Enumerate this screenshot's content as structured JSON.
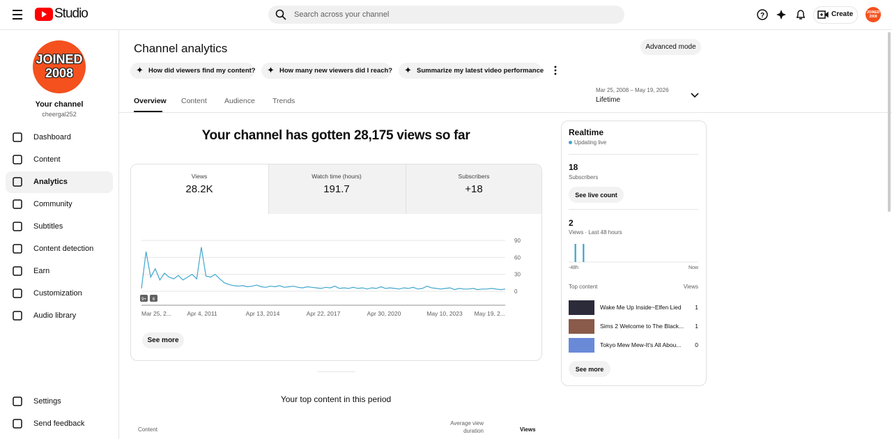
{
  "header": {
    "logo": "Studio",
    "search_placeholder": "Search across your channel",
    "create": "Create",
    "avatar_text": "JOINED 2008"
  },
  "sidebar": {
    "avatar_lines": [
      "JOINED",
      "2008"
    ],
    "channel_title": "Your channel",
    "channel_handle": "cheergal252",
    "nav": [
      "Dashboard",
      "Content",
      "Analytics",
      "Community",
      "Subtitles",
      "Content detection",
      "Earn",
      "Customization",
      "Audio library"
    ],
    "footer_nav": [
      "Settings",
      "Send feedback"
    ]
  },
  "main": {
    "title": "Channel analytics",
    "advanced_mode": "Advanced mode",
    "prompts": [
      "How did viewers find my content?",
      "How many new viewers did I reach?",
      "Summarize my latest video performance"
    ],
    "tabs": [
      "Overview",
      "Content",
      "Audience",
      "Trends"
    ],
    "date_range": "Mar 25, 2008 – May 19, 2026",
    "period": "Lifetime",
    "headline": "Your channel has gotten 28,175 views so far",
    "metrics": [
      {
        "label": "Views",
        "value": "28.2K"
      },
      {
        "label": "Watch time (hours)",
        "value": "191.7"
      },
      {
        "label": "Subscribers",
        "value": "+18"
      }
    ],
    "chart": {
      "type": "line",
      "color": "#41a6cc",
      "ylim": [
        0,
        90
      ],
      "yticks": [
        0,
        30,
        60,
        90
      ],
      "x_labels": [
        "Mar 25, 2...",
        "Apr 4, 2011",
        "Apr 13, 2014",
        "Apr 22, 2017",
        "Apr 30, 2020",
        "May 10, 2023",
        "May 19, 2..."
      ],
      "badges": [
        "9+",
        "6"
      ],
      "values": [
        5,
        70,
        25,
        40,
        20,
        32,
        25,
        22,
        28,
        20,
        25,
        30,
        22,
        78,
        27,
        25,
        30,
        22,
        15,
        12,
        10,
        9,
        10,
        8,
        9,
        11,
        8,
        7,
        9,
        8,
        10,
        7,
        8,
        9,
        7,
        6,
        8,
        7,
        6,
        5,
        7,
        6,
        9,
        5,
        6,
        5,
        7,
        5,
        6,
        4,
        6,
        5,
        8,
        5,
        6,
        5,
        4,
        6,
        5,
        7,
        4,
        5,
        9,
        6,
        5,
        4,
        5,
        6,
        3,
        5,
        4,
        4,
        5,
        3,
        4,
        4,
        5,
        4,
        3,
        4
      ]
    },
    "see_more": "See more",
    "top_content_title": "Your top content in this period",
    "table_headers": [
      "Content",
      "Average view duration",
      "Views"
    ]
  },
  "realtime": {
    "title": "Realtime",
    "status": "Updating live",
    "subscribers": "18",
    "subscribers_label": "Subscribers",
    "live_count": "See live count",
    "views": "2",
    "views_label": "Views · Last 48 hours",
    "hourly_views": [
      0,
      0,
      1,
      0,
      0,
      1,
      0,
      0,
      0,
      0,
      0,
      0,
      0,
      0,
      0,
      0,
      0,
      0,
      0,
      0,
      0,
      0,
      0,
      0,
      0,
      0,
      0,
      0,
      0,
      0,
      0,
      0,
      0,
      0,
      0,
      0,
      0,
      0,
      0,
      0,
      0,
      0,
      0,
      0,
      0,
      0,
      0,
      0
    ],
    "axis_start": "-48h",
    "axis_end": "Now",
    "top_content": "Top content",
    "views_header": "Views",
    "items": [
      {
        "title": "Wake Me Up Inside~Elfen Lied",
        "views": "1"
      },
      {
        "title": "Sims 2 Welcome to The Black...",
        "views": "1"
      },
      {
        "title": "Tokyo Mew Mew-It's All Abou...",
        "views": "0"
      }
    ],
    "see_more": "See more"
  }
}
